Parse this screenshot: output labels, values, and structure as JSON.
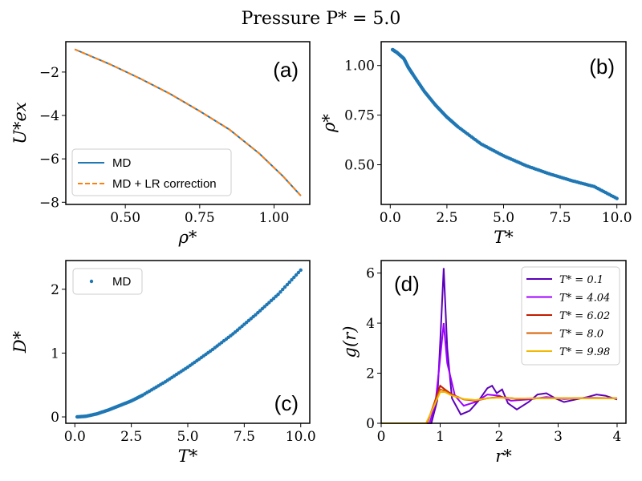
{
  "suptitle": "Pressure P* = 5.0",
  "colors": {
    "blue": "#1f77b4",
    "orange": "#ff7f0e",
    "t01": "#5b00b8",
    "t404": "#9d00ff",
    "t602": "#c41a00",
    "t80": "#d95f00",
    "t998": "#f2b800"
  },
  "chart_data": [
    {
      "id": "a",
      "type": "line",
      "panel_label": "(a)",
      "xlabel": "ρ*",
      "ylabel": "U*ex",
      "xlim": [
        0.3,
        1.12
      ],
      "ylim": [
        -8.1,
        -0.6
      ],
      "xticks": [
        0.5,
        0.75,
        1.0
      ],
      "xtick_labels": [
        "0.50",
        "0.75",
        "1.00"
      ],
      "yticks": [
        -2,
        -4,
        -6,
        -8
      ],
      "ytick_labels": [
        "−2",
        "−4",
        "−6",
        "−8"
      ],
      "legend": [
        "MD",
        "MD + LR correction"
      ],
      "legend_loc": "lower-left",
      "series": [
        {
          "name": "MD",
          "x": [
            0.33,
            0.45,
            0.55,
            0.65,
            0.75,
            0.85,
            0.95,
            1.03,
            1.09
          ],
          "y": [
            -0.95,
            -1.65,
            -2.3,
            -3.0,
            -3.8,
            -4.65,
            -5.75,
            -6.8,
            -7.7
          ]
        },
        {
          "name": "MD + LR correction",
          "x": [
            0.33,
            0.45,
            0.55,
            0.65,
            0.75,
            0.85,
            0.95,
            1.03,
            1.09
          ],
          "y": [
            -0.95,
            -1.65,
            -2.3,
            -3.0,
            -3.8,
            -4.65,
            -5.75,
            -6.8,
            -7.7
          ]
        }
      ]
    },
    {
      "id": "b",
      "type": "scatter",
      "panel_label": "(b)",
      "xlabel": "T*",
      "ylabel": "ρ*",
      "xlim": [
        -0.4,
        10.4
      ],
      "ylim": [
        0.3,
        1.12
      ],
      "xticks": [
        0,
        2.5,
        5,
        7.5,
        10
      ],
      "xtick_labels": [
        "0.0",
        "2.5",
        "5.0",
        "7.5",
        "10.0"
      ],
      "yticks": [
        0.5,
        0.75,
        1.0
      ],
      "ytick_labels": [
        "0.50",
        "0.75",
        "1.00"
      ],
      "series": [
        {
          "name": "MD",
          "x": [
            0.1,
            0.3,
            0.6,
            0.8,
            1.0,
            1.5,
            2.0,
            2.5,
            3.0,
            4.0,
            5.0,
            6.0,
            7.0,
            8.0,
            9.0,
            10.0
          ],
          "y": [
            1.08,
            1.065,
            1.035,
            0.99,
            0.955,
            0.87,
            0.8,
            0.74,
            0.69,
            0.605,
            0.545,
            0.495,
            0.455,
            0.42,
            0.39,
            0.33
          ]
        }
      ]
    },
    {
      "id": "c",
      "type": "scatter",
      "panel_label": "(c)",
      "xlabel": "T*",
      "ylabel": "D*",
      "xlim": [
        -0.4,
        10.4
      ],
      "ylim": [
        -0.1,
        2.45
      ],
      "xticks": [
        0,
        2.5,
        5,
        7.5,
        10
      ],
      "xtick_labels": [
        "0.0",
        "2.5",
        "5.0",
        "7.5",
        "10.0"
      ],
      "yticks": [
        0,
        1,
        2
      ],
      "ytick_labels": [
        "0",
        "1",
        "2"
      ],
      "legend": [
        "MD"
      ],
      "legend_loc": "upper-left",
      "series": [
        {
          "name": "MD",
          "x": [
            0.1,
            0.5,
            1.0,
            1.5,
            2.0,
            2.5,
            3.0,
            4.0,
            5.0,
            6.0,
            7.0,
            8.0,
            9.0,
            10.0
          ],
          "y": [
            0.0,
            0.01,
            0.05,
            0.11,
            0.18,
            0.25,
            0.34,
            0.55,
            0.78,
            1.03,
            1.3,
            1.6,
            1.92,
            2.3
          ]
        }
      ]
    },
    {
      "id": "d",
      "type": "line",
      "panel_label": "(d)",
      "xlabel": "r*",
      "ylabel": "g(r)",
      "xlim": [
        0,
        4.15
      ],
      "ylim": [
        0,
        6.5
      ],
      "xticks": [
        0,
        1,
        2,
        3,
        4
      ],
      "xtick_labels": [
        "0",
        "1",
        "2",
        "3",
        "4"
      ],
      "yticks": [
        0,
        2,
        4,
        6
      ],
      "ytick_labels": [
        "0",
        "2",
        "4",
        "6"
      ],
      "legend": [
        "T* = 0.1",
        "T* = 4.04",
        "T* = 6.02",
        "T* = 8.0",
        "T* = 9.98"
      ],
      "legend_loc": "upper-right",
      "series": [
        {
          "name": "T* = 0.1",
          "color_key": "t01",
          "x": [
            0.0,
            0.85,
            0.95,
            1.0,
            1.06,
            1.12,
            1.2,
            1.35,
            1.5,
            1.65,
            1.8,
            1.88,
            1.96,
            2.05,
            2.15,
            2.3,
            2.5,
            2.65,
            2.8,
            2.95,
            3.1,
            3.3,
            3.5,
            3.65,
            3.8,
            4.0
          ],
          "y": [
            0.0,
            0.0,
            0.9,
            3.2,
            6.2,
            3.0,
            1.0,
            0.35,
            0.5,
            0.9,
            1.4,
            1.5,
            1.2,
            1.35,
            0.8,
            0.55,
            0.85,
            1.15,
            1.2,
            1.0,
            0.85,
            0.95,
            1.05,
            1.15,
            1.1,
            0.95
          ]
        },
        {
          "name": "T* = 4.04",
          "color_key": "t404",
          "x": [
            0.0,
            0.82,
            0.92,
            1.0,
            1.06,
            1.12,
            1.25,
            1.4,
            1.6,
            1.8,
            2.0,
            2.2,
            2.5,
            2.8,
            3.1,
            3.5,
            4.0
          ],
          "y": [
            0.0,
            0.0,
            0.8,
            2.6,
            4.0,
            2.4,
            1.1,
            0.7,
            0.85,
            1.15,
            1.1,
            0.9,
            0.95,
            1.05,
            0.97,
            1.02,
            1.0
          ]
        },
        {
          "name": "T* = 6.02",
          "color_key": "t602",
          "x": [
            0.0,
            0.78,
            0.9,
            1.0,
            1.08,
            1.2,
            1.4,
            1.6,
            1.8,
            2.0,
            2.3,
            2.7,
            3.2,
            4.0
          ],
          "y": [
            0.0,
            0.0,
            0.8,
            1.5,
            1.35,
            1.15,
            0.95,
            0.9,
            1.0,
            1.05,
            0.98,
            1.0,
            1.0,
            1.0
          ]
        },
        {
          "name": "T* = 8.0",
          "color_key": "t80",
          "x": [
            0.0,
            0.77,
            0.9,
            1.0,
            1.08,
            1.2,
            1.4,
            1.6,
            1.8,
            2.0,
            2.3,
            2.7,
            3.2,
            4.0
          ],
          "y": [
            0.0,
            0.0,
            0.75,
            1.35,
            1.3,
            1.12,
            0.96,
            0.92,
            1.0,
            1.03,
            0.99,
            1.0,
            1.0,
            1.0
          ]
        },
        {
          "name": "T* = 9.98",
          "color_key": "t998",
          "x": [
            0.0,
            0.76,
            0.9,
            1.0,
            1.08,
            1.2,
            1.4,
            1.6,
            1.8,
            2.0,
            2.3,
            2.7,
            3.2,
            4.0
          ],
          "y": [
            0.0,
            0.0,
            0.7,
            1.25,
            1.25,
            1.1,
            0.97,
            0.93,
            1.0,
            1.02,
            0.99,
            1.0,
            1.0,
            1.0
          ]
        }
      ]
    }
  ]
}
